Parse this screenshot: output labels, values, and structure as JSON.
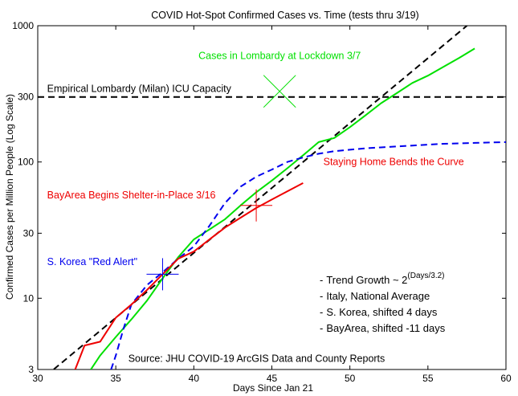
{
  "chart_data": {
    "type": "line",
    "title": "COVID Hot-Spot Confirmed Cases vs. Time (tests thru 3/19)",
    "xlabel": "Days Since Jan 21",
    "ylabel": "Confirmed Cases per Million People (Log Scale)",
    "xlim": [
      30,
      60
    ],
    "ylim": [
      3,
      1000
    ],
    "yscale": "log",
    "grid": false,
    "x_ticks": [
      30,
      35,
      40,
      45,
      50,
      55,
      60
    ],
    "y_ticks": [
      3,
      10,
      30,
      100,
      300,
      1000
    ],
    "x_tick_labels": [
      "30",
      "35",
      "40",
      "45",
      "50",
      "55",
      "60"
    ],
    "y_tick_labels": [
      "3",
      "10",
      "30",
      "100",
      "300",
      "1000"
    ],
    "series": [
      {
        "name": "Trend Growth ~ 2",
        "color": "#000000",
        "style": "dashed",
        "x": [
          30,
          57.5
        ],
        "y": [
          2.4,
          1000
        ]
      },
      {
        "name": "Italy, National Average",
        "color": "#00e000",
        "style": "solid",
        "x": [
          33.4,
          34,
          35,
          36,
          37,
          38,
          39,
          40,
          41,
          42,
          43,
          44,
          45,
          46,
          47,
          48,
          49,
          50,
          51,
          52,
          53,
          54,
          55,
          56,
          57,
          58
        ],
        "y": [
          3.0,
          3.8,
          5.2,
          7.0,
          9.6,
          14,
          20,
          27,
          32,
          38,
          48,
          60,
          73,
          90,
          112,
          140,
          150,
          180,
          220,
          270,
          320,
          380,
          430,
          500,
          580,
          680
        ]
      },
      {
        "name": "S. Korea, shifted 4 days",
        "color": "#0000ee",
        "style": "dashed",
        "x": [
          34.7,
          35,
          35.5,
          36,
          37,
          38,
          39,
          40,
          41,
          42,
          43,
          44,
          45,
          46,
          47,
          48,
          49,
          50,
          51,
          52,
          53,
          54,
          55,
          56,
          57,
          58,
          59,
          60
        ],
        "y": [
          3.0,
          3.8,
          6.0,
          9.0,
          12.5,
          15.5,
          19.5,
          24,
          34,
          50,
          66,
          78,
          88,
          100,
          108,
          115,
          120,
          123,
          126,
          128,
          130,
          132,
          134,
          136,
          137,
          138,
          139,
          140
        ]
      },
      {
        "name": "BayArea, shifted -11 days",
        "color": "#ee0000",
        "style": "solid",
        "x": [
          32.4,
          33,
          34,
          35,
          36,
          37,
          38,
          39,
          40,
          41,
          42,
          43,
          44,
          45,
          46,
          47
        ],
        "y": [
          3.0,
          4.5,
          4.8,
          7.2,
          9.0,
          11.5,
          15,
          19.5,
          22,
          27,
          33,
          39,
          46,
          53,
          61,
          70
        ]
      }
    ],
    "hlines": [
      {
        "y": 300,
        "color": "#000000",
        "style": "dashed",
        "label": "Empirical Lombardy (Milan) ICU Capacity"
      }
    ],
    "markers": [
      {
        "x": 45.5,
        "y": 330,
        "shape": "x",
        "color": "#00e000"
      },
      {
        "x": 44,
        "y": 48,
        "shape": "+",
        "color": "#ee0000"
      },
      {
        "x": 38,
        "y": 15,
        "shape": "+",
        "color": "#0000ee"
      }
    ],
    "annotations": [
      {
        "text": "Cases in Lombardy at Lockdown 3/7",
        "color": "#00e000",
        "x": 40.3,
        "y": 600
      },
      {
        "text": "Staying Home Bends the Curve",
        "color": "#ee0000",
        "x": 48.3,
        "y": 100
      },
      {
        "text": "BayArea Begins Shelter-in-Place 3/16",
        "color": "#ee0000",
        "x": 30.6,
        "y": 57
      },
      {
        "text": "S. Korea \"Red Alert\"",
        "color": "#0000ee",
        "x": 30.6,
        "y": 18.5
      },
      {
        "text": "Source: JHU COVID-19 ArcGIS Data and County Reports",
        "color": "#000000",
        "x": 35.8,
        "y": 3.6
      }
    ],
    "legend": {
      "placement": "bottom-right",
      "entries": [
        {
          "dash": "-",
          "text": "Trend Growth ~ 2",
          "superscript": "(Days/3.2)",
          "color": "#000000"
        },
        {
          "dash": "-",
          "text": "Italy, National Average",
          "color": "#00e000"
        },
        {
          "dash": "-",
          "text": "S. Korea, shifted 4 days",
          "color": "#0000ee"
        },
        {
          "dash": "-",
          "text": "BayArea, shifted -11 days",
          "color": "#ee0000"
        }
      ]
    }
  }
}
